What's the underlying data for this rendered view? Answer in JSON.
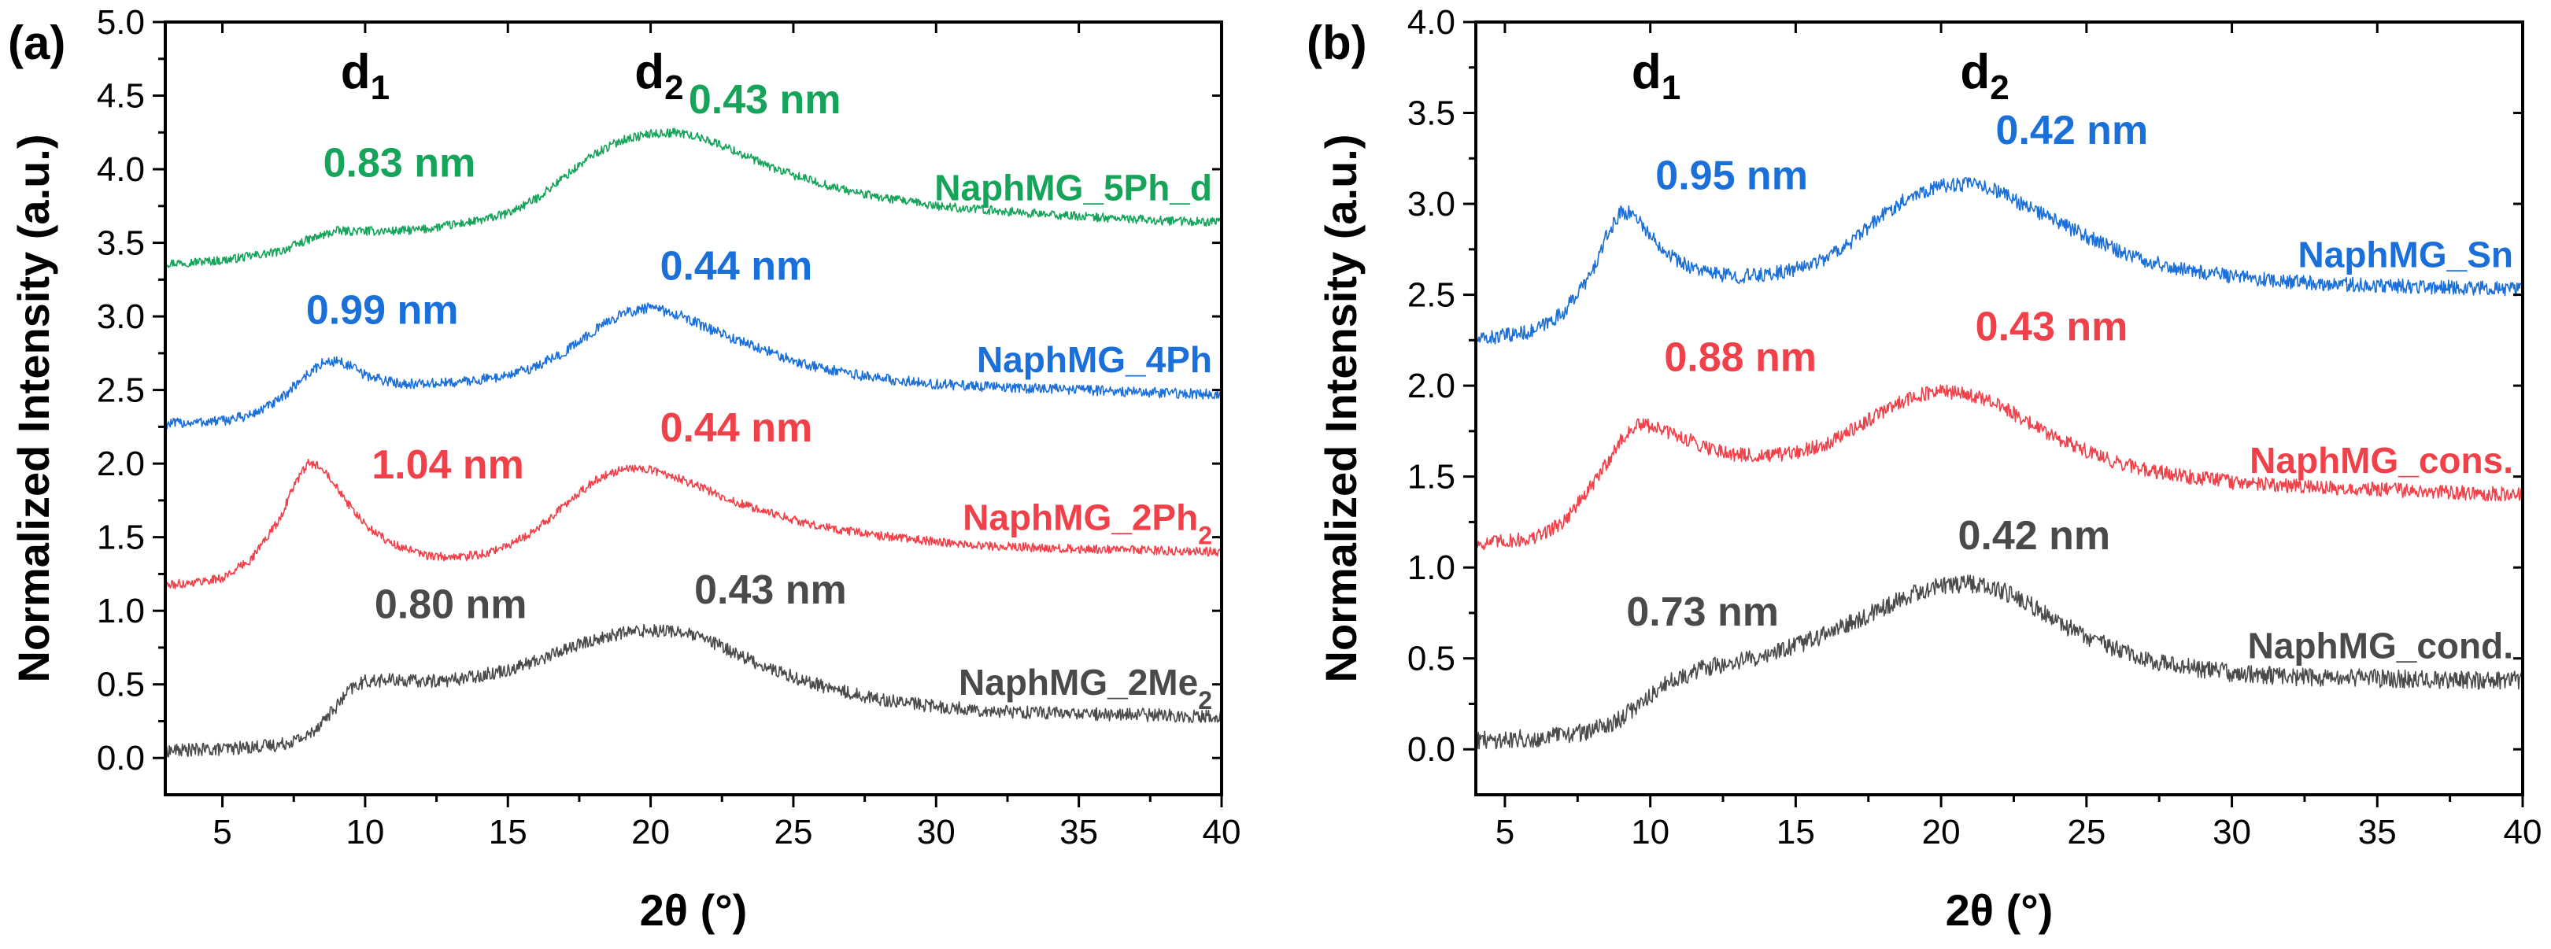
{
  "chart_data": [
    {
      "type": "line",
      "panel": "(a)",
      "xlabel": "2θ (°)",
      "ylabel": "Normalized Intensity  (a.u.)",
      "xlim": [
        3,
        40
      ],
      "ylim": [
        -0.25,
        5.0
      ],
      "xticks": [
        5,
        10,
        15,
        20,
        25,
        30,
        35,
        40
      ],
      "yticks": [
        "0.0",
        "0.5",
        "1.0",
        "1.5",
        "2.0",
        "2.5",
        "3.0",
        "3.5",
        "4.0",
        "4.5",
        "5.0"
      ],
      "peak_labels": [
        {
          "main": "d",
          "sub": "1",
          "x": 10.0
        },
        {
          "main": "d",
          "sub": "2",
          "x": 20.3
        }
      ],
      "series": [
        {
          "name": "NaphMG_5Ph_d",
          "legend_main": "NaphMG_5Ph_d",
          "legend_sub": "",
          "color": "#16a35a",
          "x": [
            3,
            5,
            7,
            8,
            9,
            10,
            11,
            12,
            13,
            14,
            15,
            16,
            17,
            18,
            19,
            20,
            21,
            22,
            23,
            24,
            25,
            26,
            27,
            28,
            29,
            30,
            32,
            34,
            36,
            38,
            40
          ],
          "values": [
            3.36,
            3.38,
            3.44,
            3.52,
            3.58,
            3.58,
            3.58,
            3.59,
            3.62,
            3.65,
            3.7,
            3.8,
            3.95,
            4.1,
            4.2,
            4.24,
            4.25,
            4.2,
            4.12,
            4.03,
            3.96,
            3.9,
            3.85,
            3.81,
            3.78,
            3.75,
            3.72,
            3.69,
            3.67,
            3.65,
            3.64
          ],
          "noise": 0.03,
          "annotations": [
            {
              "text": "0.83 nm",
              "x": 11.2,
              "y": 3.95
            },
            {
              "text": "0.43 nm",
              "x": 24.0,
              "y": 4.38
            }
          ]
        },
        {
          "name": "NaphMG_4Ph",
          "legend_main": "NaphMG_4Ph",
          "legend_sub": "",
          "color": "#1a6fd8",
          "x": [
            3,
            5,
            6,
            7,
            7.8,
            8.5,
            9,
            9.5,
            10,
            11,
            12,
            13,
            14,
            15,
            16,
            17,
            18,
            19,
            20,
            21,
            22,
            23,
            24,
            25,
            26,
            27,
            28,
            30,
            32,
            35,
            38,
            40
          ],
          "values": [
            2.27,
            2.29,
            2.33,
            2.43,
            2.58,
            2.68,
            2.7,
            2.66,
            2.6,
            2.55,
            2.54,
            2.55,
            2.57,
            2.6,
            2.66,
            2.76,
            2.9,
            3.02,
            3.06,
            3.01,
            2.92,
            2.84,
            2.77,
            2.7,
            2.65,
            2.61,
            2.58,
            2.54,
            2.52,
            2.5,
            2.48,
            2.47
          ],
          "noise": 0.035,
          "annotations": [
            {
              "text": "0.99 nm",
              "x": 10.6,
              "y": 2.95
            },
            {
              "text": "0.44 nm",
              "x": 23.0,
              "y": 3.25
            }
          ]
        },
        {
          "name": "NaphMG_2Ph2",
          "legend_main": "NaphMG_2Ph",
          "legend_sub": "2",
          "color": "#f0414a",
          "x": [
            3,
            5,
            6,
            7,
            7.5,
            8,
            8.5,
            9,
            9.5,
            10,
            11,
            12,
            13,
            14,
            15,
            16,
            17,
            18,
            19,
            20,
            21,
            22,
            23,
            24,
            25,
            26,
            27,
            28,
            30,
            32,
            35,
            38,
            40
          ],
          "values": [
            1.17,
            1.22,
            1.35,
            1.62,
            1.85,
            2.0,
            1.98,
            1.85,
            1.7,
            1.58,
            1.45,
            1.38,
            1.36,
            1.38,
            1.44,
            1.55,
            1.72,
            1.88,
            1.97,
            1.96,
            1.9,
            1.82,
            1.74,
            1.67,
            1.62,
            1.57,
            1.54,
            1.51,
            1.47,
            1.44,
            1.42,
            1.41,
            1.4
          ],
          "noise": 0.03,
          "annotations": [
            {
              "text": "1.04 nm",
              "x": 12.9,
              "y": 1.9
            },
            {
              "text": "0.44 nm",
              "x": 23.0,
              "y": 2.15
            }
          ]
        },
        {
          "name": "NaphMG_2Me2",
          "legend_main": "NaphMG_2Me",
          "legend_sub": "2",
          "color": "#4a4a4a",
          "x": [
            3,
            5,
            7,
            8,
            9,
            9.5,
            10,
            11,
            12,
            13,
            14,
            15,
            16,
            17,
            18,
            19,
            20,
            21,
            22,
            23,
            24,
            25,
            26,
            27,
            28,
            30,
            32,
            35,
            38,
            40
          ],
          "values": [
            0.05,
            0.06,
            0.09,
            0.15,
            0.35,
            0.47,
            0.52,
            0.53,
            0.52,
            0.53,
            0.56,
            0.6,
            0.66,
            0.74,
            0.8,
            0.85,
            0.87,
            0.86,
            0.8,
            0.71,
            0.62,
            0.55,
            0.49,
            0.44,
            0.4,
            0.35,
            0.32,
            0.3,
            0.29,
            0.28
          ],
          "noise": 0.045,
          "annotations": [
            {
              "text": "0.80 nm",
              "x": 13.0,
              "y": 0.95
            },
            {
              "text": "0.43 nm",
              "x": 24.2,
              "y": 1.05
            }
          ]
        }
      ]
    },
    {
      "type": "line",
      "panel": "(b)",
      "xlabel": "2θ (°)",
      "ylabel": "Normalized Intensity  (a.u.)",
      "xlim": [
        4,
        40
      ],
      "ylim": [
        -0.25,
        4.0
      ],
      "xticks": [
        5,
        10,
        15,
        20,
        25,
        30,
        35,
        40
      ],
      "yticks": [
        "0.0",
        "0.5",
        "1.0",
        "1.5",
        "2.0",
        "2.5",
        "3.0",
        "3.5",
        "4.0"
      ],
      "peak_labels": [
        {
          "main": "d",
          "sub": "1",
          "x": 10.2
        },
        {
          "main": "d",
          "sub": "2",
          "x": 21.5
        }
      ],
      "series": [
        {
          "name": "NaphMG_Sn",
          "legend_main": "NaphMG_Sn",
          "legend_sub": "",
          "color": "#1a6fd8",
          "x": [
            4,
            6,
            7,
            8,
            8.5,
            9,
            9.5,
            10,
            11,
            12,
            13,
            14,
            15,
            16,
            17,
            18,
            19,
            20,
            21,
            22,
            23,
            24,
            25,
            26,
            27,
            28,
            30,
            32,
            35,
            38,
            40
          ],
          "values": [
            2.25,
            2.3,
            2.4,
            2.62,
            2.82,
            2.96,
            2.94,
            2.82,
            2.68,
            2.62,
            2.6,
            2.61,
            2.64,
            2.7,
            2.8,
            2.94,
            3.05,
            3.1,
            3.11,
            3.07,
            2.98,
            2.9,
            2.82,
            2.75,
            2.69,
            2.65,
            2.6,
            2.57,
            2.55,
            2.54,
            2.53
          ],
          "noise": 0.04,
          "annotations": [
            {
              "text": "0.95 nm",
              "x": 12.8,
              "y": 3.08
            },
            {
              "text": "0.42 nm",
              "x": 24.5,
              "y": 3.33
            }
          ]
        },
        {
          "name": "NaphMG_cons.",
          "legend_main": "NaphMG_cons.",
          "legend_sub": "",
          "color": "#f0414a",
          "x": [
            4,
            6,
            7,
            8,
            9,
            9.5,
            10,
            11,
            12,
            13,
            14,
            15,
            16,
            17,
            18,
            19,
            20,
            21,
            22,
            23,
            24,
            25,
            26,
            27,
            28,
            30,
            32,
            35,
            38,
            40
          ],
          "values": [
            1.13,
            1.16,
            1.25,
            1.45,
            1.7,
            1.78,
            1.78,
            1.72,
            1.66,
            1.62,
            1.61,
            1.63,
            1.68,
            1.76,
            1.86,
            1.94,
            1.97,
            1.95,
            1.89,
            1.8,
            1.71,
            1.64,
            1.58,
            1.54,
            1.51,
            1.47,
            1.45,
            1.43,
            1.41,
            1.4
          ],
          "noise": 0.04,
          "annotations": [
            {
              "text": "0.88 nm",
              "x": 13.1,
              "y": 2.08
            },
            {
              "text": "0.43 nm",
              "x": 23.8,
              "y": 2.25
            }
          ]
        },
        {
          "name": "NaphMG_cond.",
          "legend_main": "NaphMG_cond.",
          "legend_sub": "",
          "color": "#4a4a4a",
          "x": [
            4,
            6,
            8,
            9,
            10,
            11,
            12,
            13,
            14,
            15,
            16,
            17,
            18,
            19,
            20,
            21,
            22,
            23,
            24,
            25,
            26,
            27,
            28,
            30,
            32,
            35,
            38,
            40
          ],
          "values": [
            0.05,
            0.06,
            0.1,
            0.17,
            0.3,
            0.4,
            0.45,
            0.48,
            0.52,
            0.57,
            0.63,
            0.7,
            0.78,
            0.85,
            0.9,
            0.91,
            0.88,
            0.8,
            0.7,
            0.62,
            0.55,
            0.5,
            0.46,
            0.42,
            0.4,
            0.39,
            0.38,
            0.38
          ],
          "noise": 0.05,
          "annotations": [
            {
              "text": "0.73 nm",
              "x": 11.8,
              "y": 0.68
            },
            {
              "text": "0.42 nm",
              "x": 23.2,
              "y": 1.1
            }
          ]
        }
      ]
    }
  ]
}
